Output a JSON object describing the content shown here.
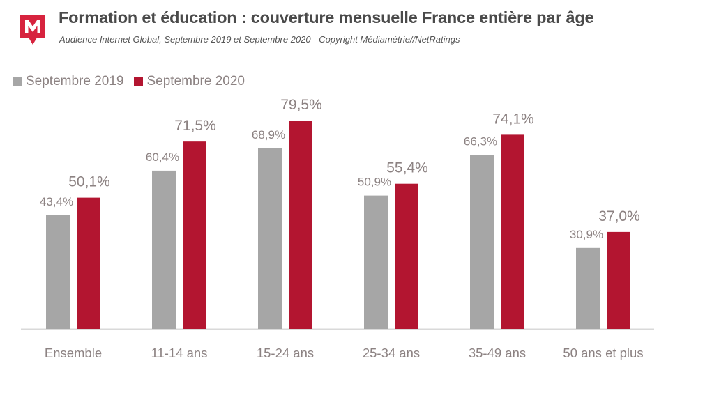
{
  "header": {
    "title": "Formation et éducation : couverture mensuelle France entière par âge",
    "subtitle": "Audience Internet Global, Septembre 2019 et Septembre 2020 - Copyright Médiamétrie//NetRatings"
  },
  "logo": {
    "icon": "mediametrie-logo",
    "letter": "M",
    "color": "#d7233e"
  },
  "colors": {
    "series_2019": "#a6a6a6",
    "series_2020": "#b31530",
    "label_text": "#8c8282"
  },
  "chart_data": {
    "type": "bar",
    "categories": [
      "Ensemble",
      "11-14 ans",
      "15-24 ans",
      "25-34 ans",
      "35-49 ans",
      "50 ans et plus"
    ],
    "series": [
      {
        "name": "Septembre 2019",
        "values": [
          43.4,
          60.4,
          68.9,
          50.9,
          66.3,
          30.9
        ],
        "labels": [
          "43,4%",
          "60,4%",
          "68,9%",
          "50,9%",
          "66,3%",
          "30,9%"
        ]
      },
      {
        "name": "Septembre 2020",
        "values": [
          50.1,
          71.5,
          79.5,
          55.4,
          74.1,
          37.0
        ],
        "labels": [
          "50,1%",
          "71,5%",
          "79,5%",
          "55,4%",
          "74,1%",
          "37,0%"
        ]
      }
    ],
    "ylim": [
      0,
      100
    ],
    "grid": false,
    "legend_position": "top-left"
  }
}
